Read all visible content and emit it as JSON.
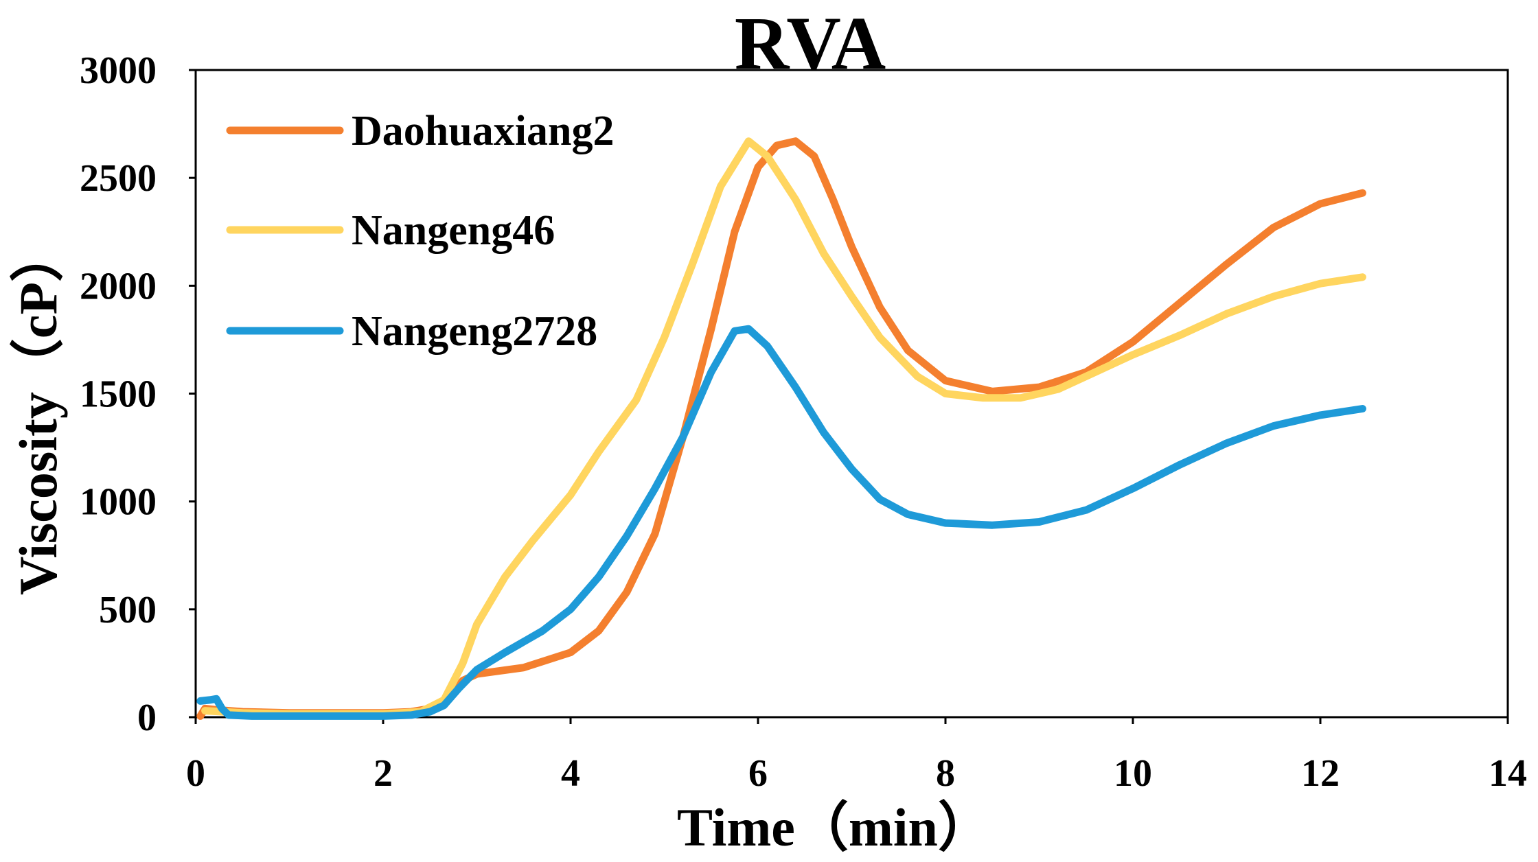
{
  "chart_data": {
    "type": "line",
    "title": "RVA",
    "xlabel": "Time（min）",
    "ylabel": "Viscosity（cP）",
    "xlim": [
      0,
      14
    ],
    "ylim": [
      0,
      3000
    ],
    "x_ticks": [
      "0",
      "2",
      "4",
      "6",
      "8",
      "10",
      "12",
      "14"
    ],
    "y_ticks": [
      "0",
      "500",
      "1000",
      "1500",
      "2000",
      "2500",
      "3000"
    ],
    "grid": false,
    "legend_position": "top-left",
    "series": [
      {
        "name": "Daohuaxiang2",
        "color": "#F47F2E",
        "points": [
          [
            0.05,
            5
          ],
          [
            0.1,
            40
          ],
          [
            0.2,
            35
          ],
          [
            0.5,
            25
          ],
          [
            1.0,
            20
          ],
          [
            1.5,
            20
          ],
          [
            2.0,
            20
          ],
          [
            2.3,
            25
          ],
          [
            2.5,
            40
          ],
          [
            2.7,
            90
          ],
          [
            2.85,
            170
          ],
          [
            3.0,
            200
          ],
          [
            3.5,
            230
          ],
          [
            4.0,
            300
          ],
          [
            4.3,
            400
          ],
          [
            4.6,
            580
          ],
          [
            4.9,
            850
          ],
          [
            5.2,
            1300
          ],
          [
            5.5,
            1800
          ],
          [
            5.75,
            2250
          ],
          [
            6.0,
            2550
          ],
          [
            6.2,
            2650
          ],
          [
            6.4,
            2670
          ],
          [
            6.6,
            2600
          ],
          [
            6.8,
            2400
          ],
          [
            7.0,
            2180
          ],
          [
            7.3,
            1900
          ],
          [
            7.6,
            1700
          ],
          [
            8.0,
            1560
          ],
          [
            8.5,
            1510
          ],
          [
            9.0,
            1530
          ],
          [
            9.5,
            1600
          ],
          [
            10.0,
            1740
          ],
          [
            10.5,
            1920
          ],
          [
            11.0,
            2100
          ],
          [
            11.5,
            2270
          ],
          [
            12.0,
            2380
          ],
          [
            12.45,
            2430
          ]
        ]
      },
      {
        "name": "Nangeng46",
        "color": "#FFD55F",
        "points": [
          [
            0.1,
            30
          ],
          [
            0.5,
            20
          ],
          [
            1.0,
            15
          ],
          [
            1.5,
            15
          ],
          [
            2.0,
            15
          ],
          [
            2.4,
            25
          ],
          [
            2.65,
            80
          ],
          [
            2.85,
            250
          ],
          [
            3.0,
            430
          ],
          [
            3.3,
            650
          ],
          [
            3.6,
            820
          ],
          [
            4.0,
            1030
          ],
          [
            4.3,
            1230
          ],
          [
            4.7,
            1470
          ],
          [
            5.0,
            1760
          ],
          [
            5.3,
            2100
          ],
          [
            5.6,
            2460
          ],
          [
            5.9,
            2670
          ],
          [
            6.1,
            2600
          ],
          [
            6.4,
            2400
          ],
          [
            6.7,
            2150
          ],
          [
            7.0,
            1950
          ],
          [
            7.3,
            1760
          ],
          [
            7.7,
            1580
          ],
          [
            8.0,
            1500
          ],
          [
            8.4,
            1480
          ],
          [
            8.8,
            1480
          ],
          [
            9.2,
            1520
          ],
          [
            9.6,
            1600
          ],
          [
            10.0,
            1680
          ],
          [
            10.5,
            1770
          ],
          [
            11.0,
            1870
          ],
          [
            11.5,
            1950
          ],
          [
            12.0,
            2010
          ],
          [
            12.45,
            2040
          ]
        ]
      },
      {
        "name": "Nangeng2728",
        "color": "#1E9AD8",
        "points": [
          [
            0.05,
            75
          ],
          [
            0.15,
            80
          ],
          [
            0.22,
            85
          ],
          [
            0.28,
            40
          ],
          [
            0.35,
            10
          ],
          [
            0.6,
            5
          ],
          [
            1.0,
            5
          ],
          [
            1.5,
            5
          ],
          [
            2.0,
            5
          ],
          [
            2.3,
            10
          ],
          [
            2.5,
            25
          ],
          [
            2.65,
            55
          ],
          [
            2.8,
            130
          ],
          [
            3.0,
            220
          ],
          [
            3.3,
            300
          ],
          [
            3.7,
            400
          ],
          [
            4.0,
            500
          ],
          [
            4.3,
            650
          ],
          [
            4.6,
            840
          ],
          [
            4.9,
            1060
          ],
          [
            5.2,
            1300
          ],
          [
            5.5,
            1600
          ],
          [
            5.75,
            1790
          ],
          [
            5.9,
            1800
          ],
          [
            6.1,
            1720
          ],
          [
            6.4,
            1530
          ],
          [
            6.7,
            1320
          ],
          [
            7.0,
            1150
          ],
          [
            7.3,
            1010
          ],
          [
            7.6,
            940
          ],
          [
            8.0,
            900
          ],
          [
            8.5,
            890
          ],
          [
            9.0,
            905
          ],
          [
            9.5,
            960
          ],
          [
            10.0,
            1060
          ],
          [
            10.5,
            1170
          ],
          [
            11.0,
            1270
          ],
          [
            11.5,
            1350
          ],
          [
            12.0,
            1400
          ],
          [
            12.45,
            1430
          ]
        ]
      }
    ]
  }
}
